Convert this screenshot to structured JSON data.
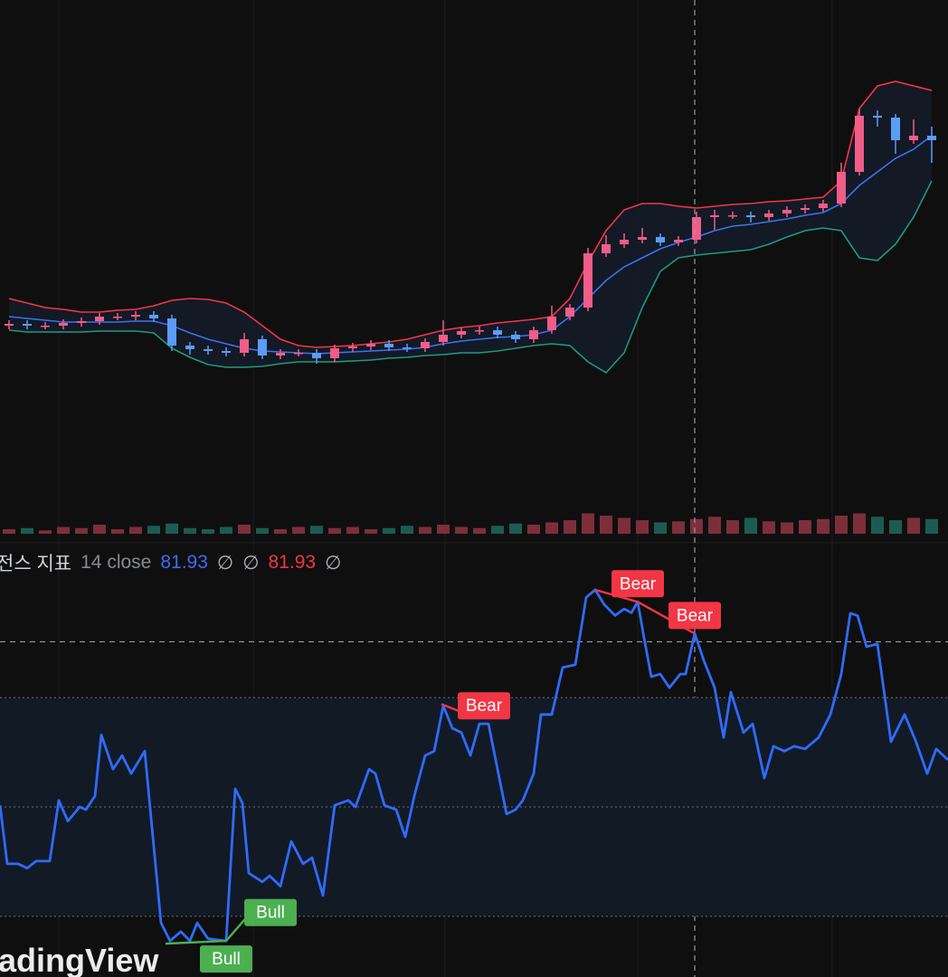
{
  "chart_data": [
    {
      "type": "candlestick",
      "xlim": [
        0,
        1048
      ],
      "ylim": [
        0,
        600
      ],
      "x": [
        10,
        30,
        50,
        70,
        90,
        110,
        130,
        150,
        170,
        190,
        210,
        230,
        250,
        270,
        290,
        310,
        330,
        350,
        370,
        390,
        410,
        430,
        450,
        470,
        490,
        510,
        530,
        550,
        570,
        590,
        610,
        630,
        650,
        670,
        690,
        710,
        730,
        750,
        770,
        790,
        810,
        830,
        850,
        870,
        890,
        910,
        930,
        950,
        970,
        990,
        1010,
        1030
      ],
      "open": [
        240,
        242,
        240,
        240,
        243,
        245,
        250,
        250,
        252,
        248,
        218,
        214,
        212,
        210,
        225,
        207,
        210,
        210,
        204,
        215,
        217,
        220,
        216,
        215,
        222,
        230,
        234,
        235,
        230,
        225,
        235,
        250,
        260,
        320,
        330,
        335,
        338,
        332,
        335,
        360,
        362,
        362,
        360,
        364,
        368,
        370,
        375,
        410,
        472,
        470,
        445,
        450
      ],
      "high": [
        246,
        246,
        244,
        247,
        249,
        254,
        254,
        256,
        256,
        252,
        222,
        218,
        216,
        232,
        229,
        214,
        214,
        214,
        219,
        221,
        224,
        224,
        220,
        226,
        246,
        238,
        239,
        239,
        234,
        239,
        262,
        264,
        326,
        340,
        342,
        348,
        342,
        339,
        366,
        368,
        366,
        366,
        368,
        372,
        374,
        379,
        420,
        480,
        478,
        474,
        468,
        460
      ],
      "low": [
        236,
        236,
        236,
        236,
        239,
        241,
        246,
        246,
        244,
        212,
        208,
        208,
        206,
        206,
        203,
        203,
        206,
        198,
        200,
        211,
        213,
        212,
        211,
        211,
        218,
        226,
        230,
        226,
        221,
        221,
        231,
        246,
        256,
        316,
        326,
        331,
        328,
        328,
        331,
        346,
        358,
        354,
        356,
        360,
        364,
        366,
        371,
        406,
        460,
        430,
        441,
        420
      ],
      "close": [
        242,
        240,
        240,
        243,
        245,
        250,
        250,
        252,
        248,
        218,
        214,
        212,
        210,
        225,
        207,
        210,
        210,
        204,
        215,
        217,
        220,
        216,
        215,
        222,
        230,
        234,
        235,
        230,
        225,
        235,
        250,
        260,
        320,
        330,
        335,
        338,
        332,
        335,
        360,
        362,
        362,
        360,
        364,
        368,
        370,
        375,
        410,
        472,
        470,
        445,
        450,
        445
      ],
      "up_color": "#ef5d88",
      "down_color": "#5b9cf6",
      "band_fill": "#141b28",
      "series": [
        {
          "color": "#f23645",
          "values": [
            270,
            265,
            260,
            258,
            255,
            255,
            257,
            258,
            262,
            268,
            270,
            269,
            265,
            255,
            240,
            225,
            218,
            216,
            217,
            218,
            220,
            222,
            225,
            230,
            235,
            238,
            240,
            243,
            245,
            247,
            250,
            270,
            310,
            345,
            368,
            375,
            375,
            372,
            370,
            372,
            374,
            375,
            377,
            378,
            380,
            382,
            400,
            480,
            505,
            510,
            505,
            500
          ]
        },
        {
          "color": "#3a72f0",
          "values": [
            250,
            248,
            246,
            244,
            244,
            244,
            244,
            245,
            245,
            240,
            232,
            225,
            220,
            215,
            212,
            211,
            210,
            209,
            210,
            211,
            212,
            213,
            214,
            216,
            220,
            223,
            225,
            227,
            228,
            230,
            235,
            250,
            270,
            290,
            305,
            315,
            325,
            332,
            338,
            345,
            350,
            352,
            355,
            358,
            362,
            365,
            375,
            395,
            410,
            425,
            435,
            450
          ]
        },
        {
          "color": "#1f9a7c",
          "values": [
            235,
            233,
            233,
            233,
            233,
            234,
            234,
            234,
            232,
            215,
            205,
            197,
            194,
            194,
            195,
            198,
            200,
            200,
            200,
            201,
            202,
            204,
            205,
            207,
            208,
            210,
            210,
            212,
            215,
            218,
            220,
            218,
            200,
            188,
            210,
            260,
            300,
            315,
            318,
            320,
            322,
            324,
            330,
            338,
            345,
            348,
            345,
            315,
            312,
            330,
            360,
            400
          ]
        }
      ],
      "volume": {
        "ylim": [
          0,
          60
        ],
        "up_color": "#7c2f3b",
        "down_color": "#1c5c50",
        "values": [
          4,
          5,
          3,
          6,
          5,
          8,
          4,
          6,
          7,
          9,
          5,
          4,
          6,
          8,
          5,
          4,
          6,
          7,
          5,
          6,
          4,
          5,
          7,
          6,
          8,
          6,
          5,
          7,
          9,
          8,
          10,
          12,
          18,
          16,
          14,
          12,
          10,
          11,
          13,
          15,
          12,
          14,
          11,
          10,
          12,
          13,
          16,
          18,
          15,
          12,
          14,
          13
        ]
      },
      "crosshair_x": 768
    },
    {
      "type": "line",
      "legend": [
        {
          "text": "전스 지표",
          "color": "#d1d4dc"
        },
        {
          "text": "14 close",
          "color": "#868993"
        },
        {
          "text": 81.93,
          "color": "#3b6cf5"
        },
        {
          "text": "∅",
          "color": "#b2b5be"
        },
        {
          "text": "∅",
          "color": "#b2b5be"
        },
        {
          "text": 81.93,
          "color": "#f23645"
        },
        {
          "text": "∅",
          "color": "#b2b5be"
        }
      ],
      "xlim": [
        0,
        1048
      ],
      "ylim": [
        18.9,
        98.3
      ],
      "x": [
        0,
        8,
        20,
        30,
        40,
        55,
        65,
        75,
        88,
        95,
        105,
        112,
        125,
        135,
        145,
        160,
        178,
        188,
        200,
        210,
        218,
        230,
        250,
        260,
        268,
        275,
        290,
        298,
        310,
        322,
        335,
        345,
        357,
        370,
        385,
        393,
        408,
        415,
        425,
        438,
        448,
        458,
        470,
        480,
        490,
        500,
        510,
        520,
        530,
        540,
        550,
        560,
        570,
        578,
        590,
        598,
        610,
        622,
        636,
        648,
        658,
        668,
        680,
        690,
        698,
        705,
        712,
        720,
        730,
        740,
        752,
        758,
        768,
        778,
        790,
        800,
        808,
        822,
        832,
        845,
        855,
        867,
        878,
        890,
        905,
        918,
        930,
        940,
        948,
        958,
        970,
        985,
        1000,
        1012,
        1025,
        1035,
        1048
      ],
      "series": [
        {
          "color": "#2f6bff",
          "values": [
            50.3,
            39.6,
            39.6,
            38.8,
            40.1,
            40.1,
            51.2,
            47.4,
            50,
            49.5,
            52,
            63.2,
            56.9,
            59.4,
            56.1,
            60.2,
            28.8,
            25.5,
            27.2,
            25.5,
            28.8,
            25.9,
            25.5,
            53.3,
            50.7,
            37.9,
            36.3,
            37.4,
            35.5,
            43.7,
            39.6,
            40.7,
            33.8,
            50.3,
            51.2,
            50,
            56.9,
            56.1,
            50.3,
            49.5,
            44.5,
            52,
            59.4,
            60.2,
            68.5,
            64.4,
            63.6,
            59.4,
            65.2,
            65.2,
            56.9,
            48.7,
            49.5,
            51.2,
            56.1,
            66.9,
            66.9,
            75.5,
            76,
            88.3,
            89.7,
            87,
            85,
            86.2,
            85.5,
            87.5,
            80.9,
            73.8,
            74.3,
            71.8,
            74.3,
            74.3,
            81.7,
            76.8,
            71.8,
            62.7,
            71,
            63.6,
            65.2,
            55.3,
            61.1,
            60.2,
            61.1,
            60.6,
            62.7,
            66.9,
            74.3,
            85.4,
            85,
            79.3,
            79.8,
            61.9,
            66.9,
            62.2,
            56.1,
            60.6,
            58.6
          ]
        }
      ],
      "levels": [
        70,
        50,
        30
      ],
      "band": [
        30,
        70
      ],
      "band_color": "#121a26",
      "crosshair_y": 80.2,
      "divergences": [
        {
          "label": "Bear",
          "color": "#f23645",
          "label_position": "above",
          "x": [
            658,
            705
          ],
          "values": [
            89.7,
            87.5
          ]
        },
        {
          "label": "Bear",
          "color": "#f23645",
          "label_position": "above",
          "x": [
            705,
            768
          ],
          "values": [
            87.5,
            81.7
          ]
        },
        {
          "label": "Bear",
          "color": "#f23645",
          "label_position": "right",
          "x": [
            488,
            508
          ],
          "values": [
            68.8,
            67.5
          ]
        },
        {
          "label": "Bull",
          "color": "#4caf50",
          "label_position": "below",
          "x": [
            183,
            250
          ],
          "values": [
            25.0,
            25.5
          ]
        },
        {
          "label": "Bull",
          "color": "#4caf50",
          "label_position": "right",
          "x": [
            250,
            272
          ],
          "values": [
            25.5,
            29.7
          ]
        }
      ]
    }
  ],
  "watermark": "adingView"
}
